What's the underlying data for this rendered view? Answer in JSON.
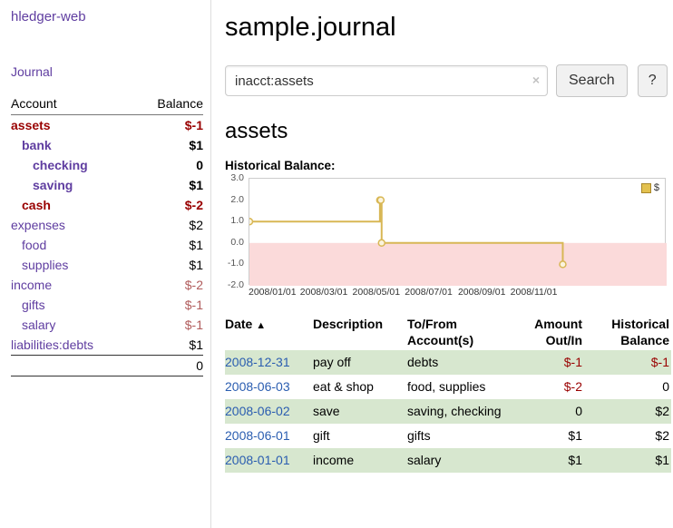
{
  "colors": {
    "purple": "#5f3da0",
    "blue": "#2a5db0",
    "dark_red": "#990000",
    "soft_red": "#b05b5b",
    "neg_amount": "#990000",
    "row_green": "#d7e7cf",
    "chart_line": "#d8b755",
    "chart_marker_fill": "#fbf4de",
    "legend_swatch": "#e3c14f",
    "legend_swatch_border": "#a8862a",
    "chart_negative_bg": "#fbdada",
    "plot_border": "#cccccc"
  },
  "app": {
    "title": "hledger-web"
  },
  "sidebar": {
    "journal_link": "Journal",
    "accounts_header": {
      "account": "Account",
      "balance": "Balance"
    },
    "accounts": [
      {
        "name": "assets",
        "balance": "$-1",
        "indent": 0,
        "emph": true
      },
      {
        "name": "bank",
        "balance": "$1",
        "indent": 1,
        "emph": true
      },
      {
        "name": "checking",
        "balance": "0",
        "indent": 2,
        "emph": true
      },
      {
        "name": "saving",
        "balance": "$1",
        "indent": 2,
        "emph": true
      },
      {
        "name": "cash",
        "balance": "$-2",
        "indent": 1,
        "emph": true
      },
      {
        "name": "expenses",
        "balance": "$2",
        "indent": 0,
        "emph": false
      },
      {
        "name": "food",
        "balance": "$1",
        "indent": 1,
        "emph": false
      },
      {
        "name": "supplies",
        "balance": "$1",
        "indent": 1,
        "emph": false
      },
      {
        "name": "income",
        "balance": "$-2",
        "indent": 0,
        "emph": false
      },
      {
        "name": "gifts",
        "balance": "$-1",
        "indent": 1,
        "emph": false
      },
      {
        "name": "salary",
        "balance": "$-1",
        "indent": 1,
        "emph": false
      },
      {
        "name": "liabilities:debts",
        "balance": "$1",
        "indent": 0,
        "emph": false
      }
    ],
    "total": "0"
  },
  "main": {
    "title": "sample.journal",
    "search": {
      "value": "inacct:assets",
      "clear_icon": "×",
      "button": "Search",
      "help_button": "?"
    },
    "account_heading": "assets"
  },
  "chart_data": {
    "type": "line",
    "step": true,
    "title": "Historical Balance:",
    "x": [
      "2008-01-01",
      "2008-06-01",
      "2008-06-02",
      "2008-06-03",
      "2008-12-31"
    ],
    "series": [
      {
        "name": "$",
        "values": [
          1,
          2,
          2,
          0,
          -1
        ]
      }
    ],
    "xlim": [
      "2008-01-01",
      "2009-05-01"
    ],
    "ylim": [
      -2,
      3
    ],
    "yticks": [
      "3.0",
      "2.0",
      "1.0",
      "0.0",
      "-1.0",
      "-2.0"
    ],
    "xticks": [
      "2008/01/01",
      "2008/03/01",
      "2008/05/01",
      "2008/07/01",
      "2008/09/01",
      "2008/11/01"
    ],
    "legend_position": "top-right",
    "grid": false,
    "negative_region_shaded": true
  },
  "table": {
    "headers": {
      "date": "Date",
      "sort_icon": "▲",
      "description": "Description",
      "accounts": "To/From Account(s)",
      "amount": "Amount Out/In",
      "balance": "Historical Balance"
    },
    "rows": [
      {
        "date": "2008-12-31",
        "description": "pay off",
        "accounts": "debts",
        "amount": "$-1",
        "balance": "$-1"
      },
      {
        "date": "2008-06-03",
        "description": "eat & shop",
        "accounts": "food, supplies",
        "amount": "$-2",
        "balance": "0"
      },
      {
        "date": "2008-06-02",
        "description": "save",
        "accounts": "saving, checking",
        "amount": "0",
        "balance": "$2"
      },
      {
        "date": "2008-06-01",
        "description": "gift",
        "accounts": "gifts",
        "amount": "$1",
        "balance": "$2"
      },
      {
        "date": "2008-01-01",
        "description": "income",
        "accounts": "salary",
        "amount": "$1",
        "balance": "$1"
      }
    ]
  }
}
